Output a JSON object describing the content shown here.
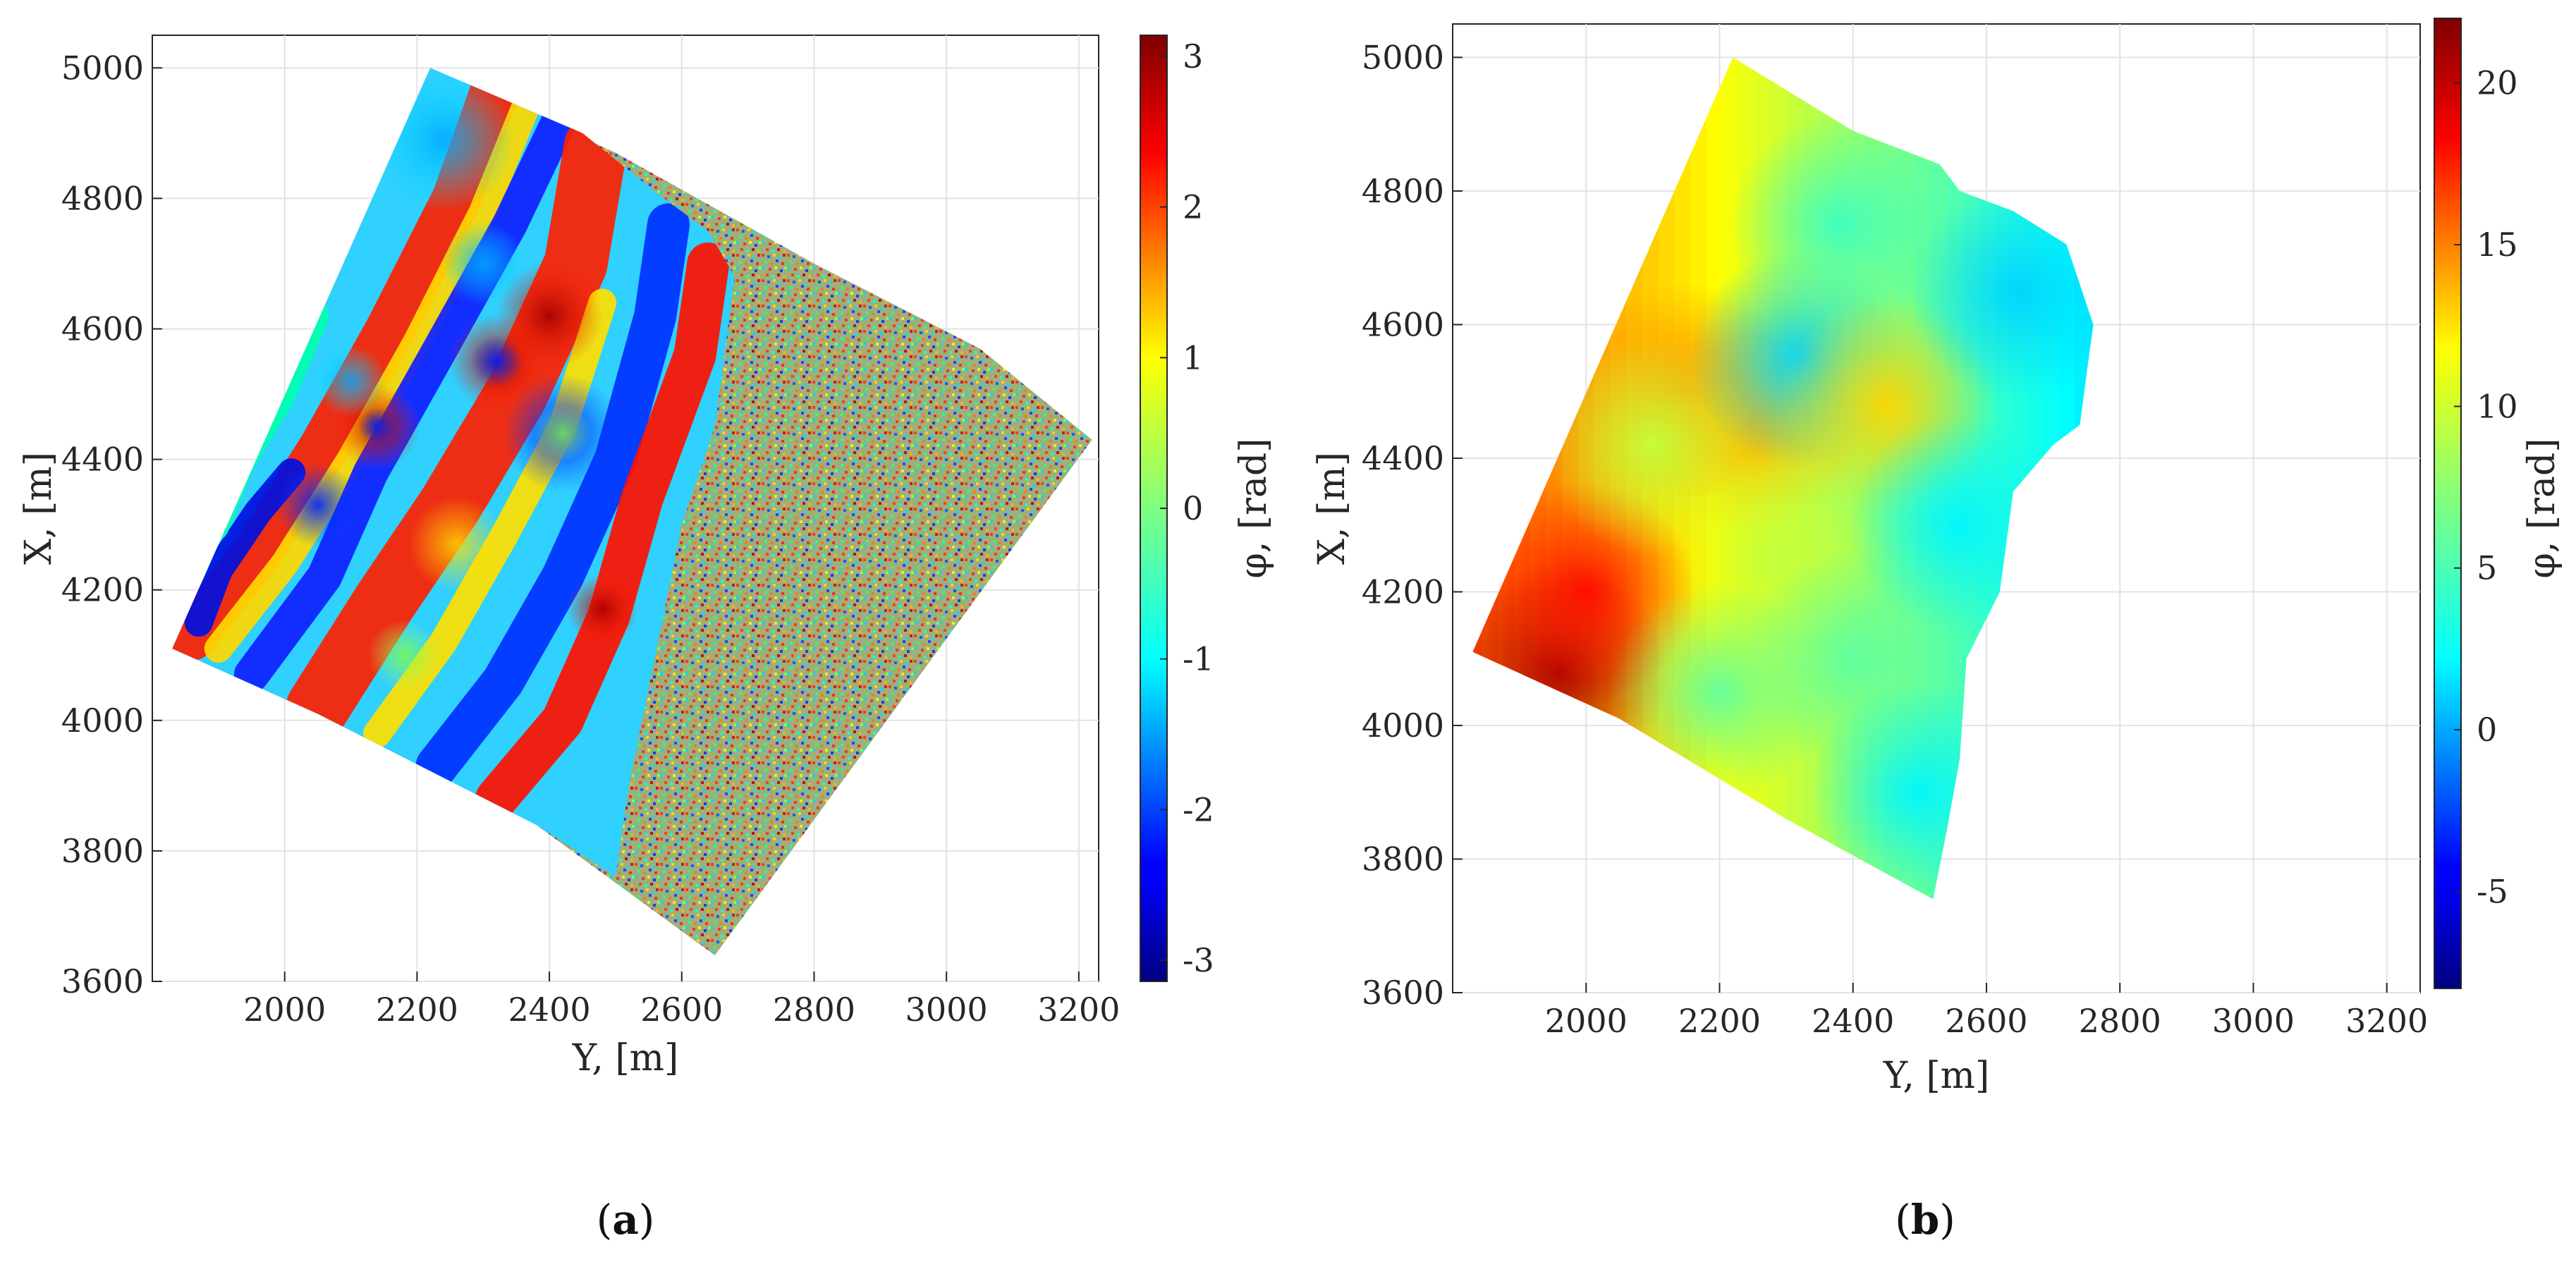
{
  "chart_data": [
    {
      "panel": "(a)",
      "panel_letter": "a",
      "type": "heatmap",
      "title": "",
      "description_hint": "wrapped interferometric phase, rotated fan-shaped scan area; right part is noise",
      "xlabel": "Y, [m]",
      "ylabel": "X, [m]",
      "xlim": [
        1800,
        3230
      ],
      "ylim": [
        3600,
        5050
      ],
      "xticks": [
        2000,
        2200,
        2400,
        2600,
        2800,
        3000,
        3200
      ],
      "yticks": [
        3600,
        3800,
        4000,
        4200,
        4400,
        4600,
        4800,
        5000
      ],
      "grid": true,
      "footprint": [
        [
          2220,
          5000
        ],
        [
          2500,
          4870
        ],
        [
          2800,
          4700
        ],
        [
          3050,
          4570
        ],
        [
          3220,
          4430
        ],
        [
          2650,
          3640
        ],
        [
          2380,
          3840
        ],
        [
          2050,
          4010
        ],
        [
          1830,
          4110
        ]
      ],
      "noise_boundary": [
        [
          2450,
          4900
        ],
        [
          2560,
          4810
        ],
        [
          2640,
          4750
        ],
        [
          2680,
          4680
        ],
        [
          2650,
          4450
        ],
        [
          2600,
          4300
        ],
        [
          2560,
          4100
        ],
        [
          2520,
          3900
        ],
        [
          2500,
          3760
        ]
      ],
      "colorbar": {
        "label": "φ, [rad]",
        "clim": [
          -3.14,
          3.14
        ],
        "ticks": [
          -3,
          -2,
          -1,
          0,
          1,
          2,
          3
        ],
        "colormap": "jet"
      }
    },
    {
      "panel": "(b)",
      "panel_letter": "b",
      "type": "heatmap",
      "title": "",
      "description_hint": "unwrapped phase over the coherent part of the scan area",
      "xlabel": "Y, [m]",
      "ylabel": "X, [m]",
      "xlim": [
        1800,
        3250
      ],
      "ylim": [
        3600,
        5050
      ],
      "xticks": [
        2000,
        2200,
        2400,
        2600,
        2800,
        3000,
        3200
      ],
      "yticks": [
        3600,
        3800,
        4000,
        4200,
        4400,
        4600,
        4800,
        5000
      ],
      "grid": true,
      "footprint": [
        [
          2220,
          5000
        ],
        [
          2400,
          4890
        ],
        [
          2530,
          4840
        ],
        [
          2560,
          4800
        ],
        [
          2640,
          4770
        ],
        [
          2720,
          4720
        ],
        [
          2760,
          4600
        ],
        [
          2740,
          4450
        ],
        [
          2700,
          4420
        ],
        [
          2640,
          4350
        ],
        [
          2620,
          4200
        ],
        [
          2570,
          4100
        ],
        [
          2560,
          3950
        ],
        [
          2540,
          3840
        ],
        [
          2520,
          3740
        ],
        [
          2300,
          3860
        ],
        [
          2050,
          4010
        ],
        [
          1830,
          4110
        ]
      ],
      "colorbar": {
        "label": "φ, [rad]",
        "clim": [
          -8,
          22
        ],
        "ticks": [
          -5,
          0,
          5,
          10,
          15,
          20
        ],
        "colormap": "jet"
      },
      "features": [
        {
          "y": 1960,
          "x": 4080,
          "value": 21
        },
        {
          "y": 2000,
          "x": 4200,
          "value": 18
        },
        {
          "y": 2150,
          "x": 4500,
          "value": 14
        },
        {
          "y": 2250,
          "x": 4450,
          "value": 13
        },
        {
          "y": 2100,
          "x": 4420,
          "value": 9
        },
        {
          "y": 2320,
          "x": 4550,
          "value": 2
        },
        {
          "y": 2380,
          "x": 4750,
          "value": 5
        },
        {
          "y": 2450,
          "x": 4480,
          "value": 12
        },
        {
          "y": 2300,
          "x": 4250,
          "value": 9
        },
        {
          "y": 2200,
          "x": 4050,
          "value": 6
        },
        {
          "y": 2400,
          "x": 4100,
          "value": 6
        },
        {
          "y": 2560,
          "x": 4300,
          "value": 3
        },
        {
          "y": 2650,
          "x": 4650,
          "value": 2
        },
        {
          "y": 2500,
          "x": 3900,
          "value": 3
        }
      ]
    }
  ]
}
